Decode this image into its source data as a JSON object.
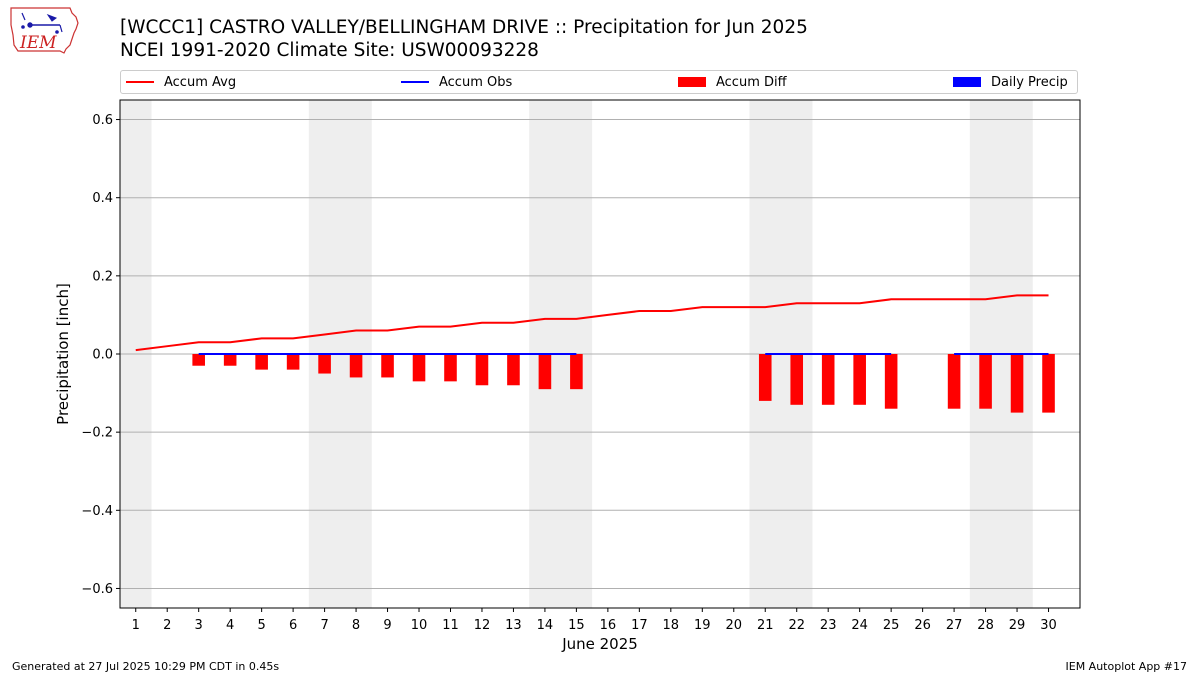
{
  "header": {
    "title": "[WCCC1] CASTRO VALLEY/BELLINGHAM DRIVE :: Precipitation for Jun 2025",
    "subtitle": "NCEI 1991-2020 Climate Site: USW00093228"
  },
  "logo": {
    "text": "IEM",
    "icon": "iem-iowa-logo"
  },
  "legend": {
    "items": [
      {
        "label": "Accum Avg",
        "color": "#ff0000",
        "kind": "line"
      },
      {
        "label": "Accum Obs",
        "color": "#0000ff",
        "kind": "line"
      },
      {
        "label": "Accum Diff",
        "color": "#ff0000",
        "kind": "box"
      },
      {
        "label": "Daily Precip",
        "color": "#0000ff",
        "kind": "box"
      }
    ],
    "placement": "top"
  },
  "footer": {
    "left": "Generated at 27 Jul 2025 10:29 PM CDT in 0.45s",
    "right": "IEM Autoplot App #17"
  },
  "chart_data": {
    "type": "line",
    "xlabel": "June 2025",
    "ylabel": "Precipitation [inch]",
    "ylim": [
      -0.65,
      0.65
    ],
    "xlim": [
      0.5,
      31
    ],
    "grid": "y",
    "x": [
      1,
      2,
      3,
      4,
      5,
      6,
      7,
      8,
      9,
      10,
      11,
      12,
      13,
      14,
      15,
      16,
      17,
      18,
      19,
      20,
      21,
      22,
      23,
      24,
      25,
      26,
      27,
      28,
      29,
      30
    ],
    "xticks": [
      "1",
      "2",
      "3",
      "4",
      "5",
      "6",
      "7",
      "8",
      "9",
      "10",
      "11",
      "12",
      "13",
      "14",
      "15",
      "16",
      "17",
      "18",
      "19",
      "20",
      "21",
      "22",
      "23",
      "24",
      "25",
      "26",
      "27",
      "28",
      "29",
      "30"
    ],
    "yticks": [
      -0.6,
      -0.4,
      -0.2,
      0.0,
      0.2,
      0.4,
      0.6
    ],
    "ytick_labels": [
      "−0.6",
      "−0.4",
      "−0.2",
      "0.0",
      "0.2",
      "0.4",
      "0.6"
    ],
    "weekend_shading": [
      [
        0.5,
        1.5
      ],
      [
        6.5,
        8.5
      ],
      [
        13.5,
        15.5
      ],
      [
        20.5,
        22.5
      ],
      [
        27.5,
        29.5
      ]
    ],
    "shade_color": "#eeeeee",
    "series": [
      {
        "name": "Accum Avg",
        "kind": "line",
        "color": "#ff0000",
        "x": [
          1,
          2,
          3,
          4,
          5,
          6,
          7,
          8,
          9,
          10,
          11,
          12,
          13,
          14,
          15,
          16,
          17,
          18,
          19,
          20,
          21,
          22,
          23,
          24,
          25,
          26,
          27,
          28,
          29,
          30
        ],
        "values": [
          0.01,
          0.02,
          0.03,
          0.03,
          0.04,
          0.04,
          0.05,
          0.06,
          0.06,
          0.07,
          0.07,
          0.08,
          0.08,
          0.09,
          0.09,
          0.1,
          0.11,
          0.11,
          0.12,
          0.12,
          0.12,
          0.13,
          0.13,
          0.13,
          0.14,
          0.14,
          0.14,
          0.14,
          0.15,
          0.15
        ]
      },
      {
        "name": "Accum Obs",
        "kind": "line",
        "color": "#0000ff",
        "segments": [
          {
            "x": [
              3,
              4,
              5,
              6,
              7,
              8,
              9,
              10,
              11,
              12,
              13,
              14,
              15
            ],
            "values": [
              0,
              0,
              0,
              0,
              0,
              0,
              0,
              0,
              0,
              0,
              0,
              0,
              0
            ]
          },
          {
            "x": [
              21,
              22,
              23,
              24,
              25
            ],
            "values": [
              0,
              0,
              0,
              0,
              0
            ]
          },
          {
            "x": [
              27,
              28,
              29,
              30
            ],
            "values": [
              0,
              0,
              0,
              0
            ]
          }
        ]
      },
      {
        "name": "Accum Diff",
        "kind": "bar",
        "color": "#ff0000",
        "x": [
          3,
          4,
          5,
          6,
          7,
          8,
          9,
          10,
          11,
          12,
          13,
          14,
          15,
          21,
          22,
          23,
          24,
          25,
          27,
          28,
          29,
          30
        ],
        "values": [
          -0.03,
          -0.03,
          -0.04,
          -0.04,
          -0.05,
          -0.06,
          -0.06,
          -0.07,
          -0.07,
          -0.08,
          -0.08,
          -0.09,
          -0.09,
          -0.12,
          -0.13,
          -0.13,
          -0.13,
          -0.14,
          -0.14,
          -0.14,
          -0.15,
          -0.15
        ]
      },
      {
        "name": "Daily Precip",
        "kind": "bar",
        "color": "#0000ff",
        "x": [],
        "values": []
      }
    ]
  }
}
